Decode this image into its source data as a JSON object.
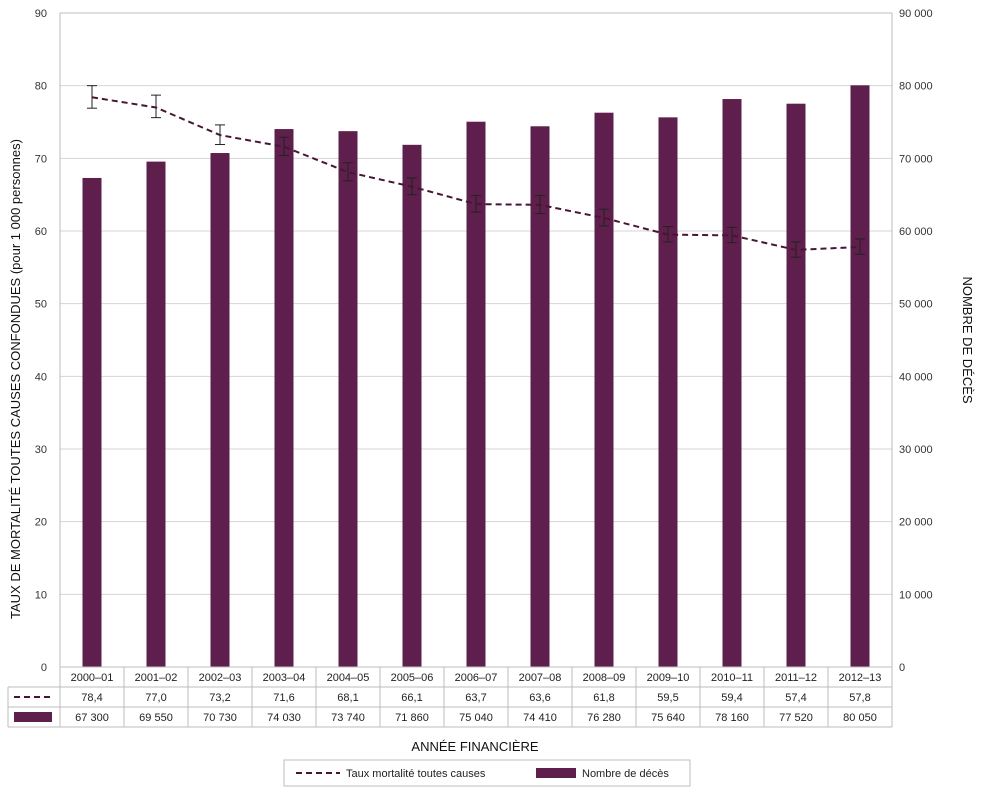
{
  "chart_data": {
    "type": "bar+line",
    "categories": [
      "2000–01",
      "2001–02",
      "2002–03",
      "2003–04",
      "2004–05",
      "2005–06",
      "2006–07",
      "2007–08",
      "2008–09",
      "2009–10",
      "2010–11",
      "2011–12",
      "2012–13"
    ],
    "series": [
      {
        "name": "Taux mortalité toutes causes",
        "kind": "line",
        "axis": "left",
        "style": "dashed",
        "color": "#4a1535",
        "values": [
          78.4,
          77.0,
          73.2,
          71.6,
          68.1,
          66.1,
          63.7,
          63.6,
          61.8,
          59.5,
          59.4,
          57.4,
          57.8
        ],
        "value_labels": [
          "78,4",
          "77,0",
          "73,2",
          "71,6",
          "68,1",
          "66,1",
          "63,7",
          "63,6",
          "61,8",
          "59,5",
          "59,4",
          "57,4",
          "57,8"
        ],
        "error_low": [
          76.9,
          75.6,
          71.9,
          70.4,
          66.9,
          65.0,
          62.6,
          62.4,
          60.7,
          58.5,
          58.4,
          56.4,
          56.8
        ],
        "error_high": [
          80.0,
          78.7,
          74.6,
          72.9,
          69.4,
          67.3,
          64.9,
          64.9,
          63.0,
          60.6,
          60.5,
          58.5,
          58.9
        ]
      },
      {
        "name": "Nombre de décès",
        "kind": "bar",
        "axis": "right",
        "color": "#5e1f4c",
        "values": [
          67300,
          69550,
          70730,
          74030,
          73740,
          71860,
          75040,
          74410,
          76280,
          75640,
          78160,
          77520,
          80050
        ],
        "value_labels": [
          "67 300",
          "69 550",
          "70 730",
          "74 030",
          "73 740",
          "71 860",
          "75 040",
          "74 410",
          "76 280",
          "75 640",
          "78 160",
          "77 520",
          "80 050"
        ]
      }
    ],
    "xlabel": "ANNÉE FINANCIÈRE",
    "ylabel": "TAUX DE MORTALITÉ TOUTES CAUSES CONFONDUES (pour 1 000 personnes)",
    "y2label": "NOMBRE DE DÉCÈS",
    "ylim": [
      0,
      90
    ],
    "y2lim": [
      0,
      90000
    ],
    "yticks": [
      "0",
      "10",
      "20",
      "30",
      "40",
      "50",
      "60",
      "70",
      "80",
      "90"
    ],
    "y2ticks": [
      "0",
      "10 000",
      "20 000",
      "30 000",
      "40 000",
      "50 000",
      "60 000",
      "70 000",
      "80 000",
      "90 000"
    ],
    "grid": true,
    "legend_position": "bottom-center"
  }
}
